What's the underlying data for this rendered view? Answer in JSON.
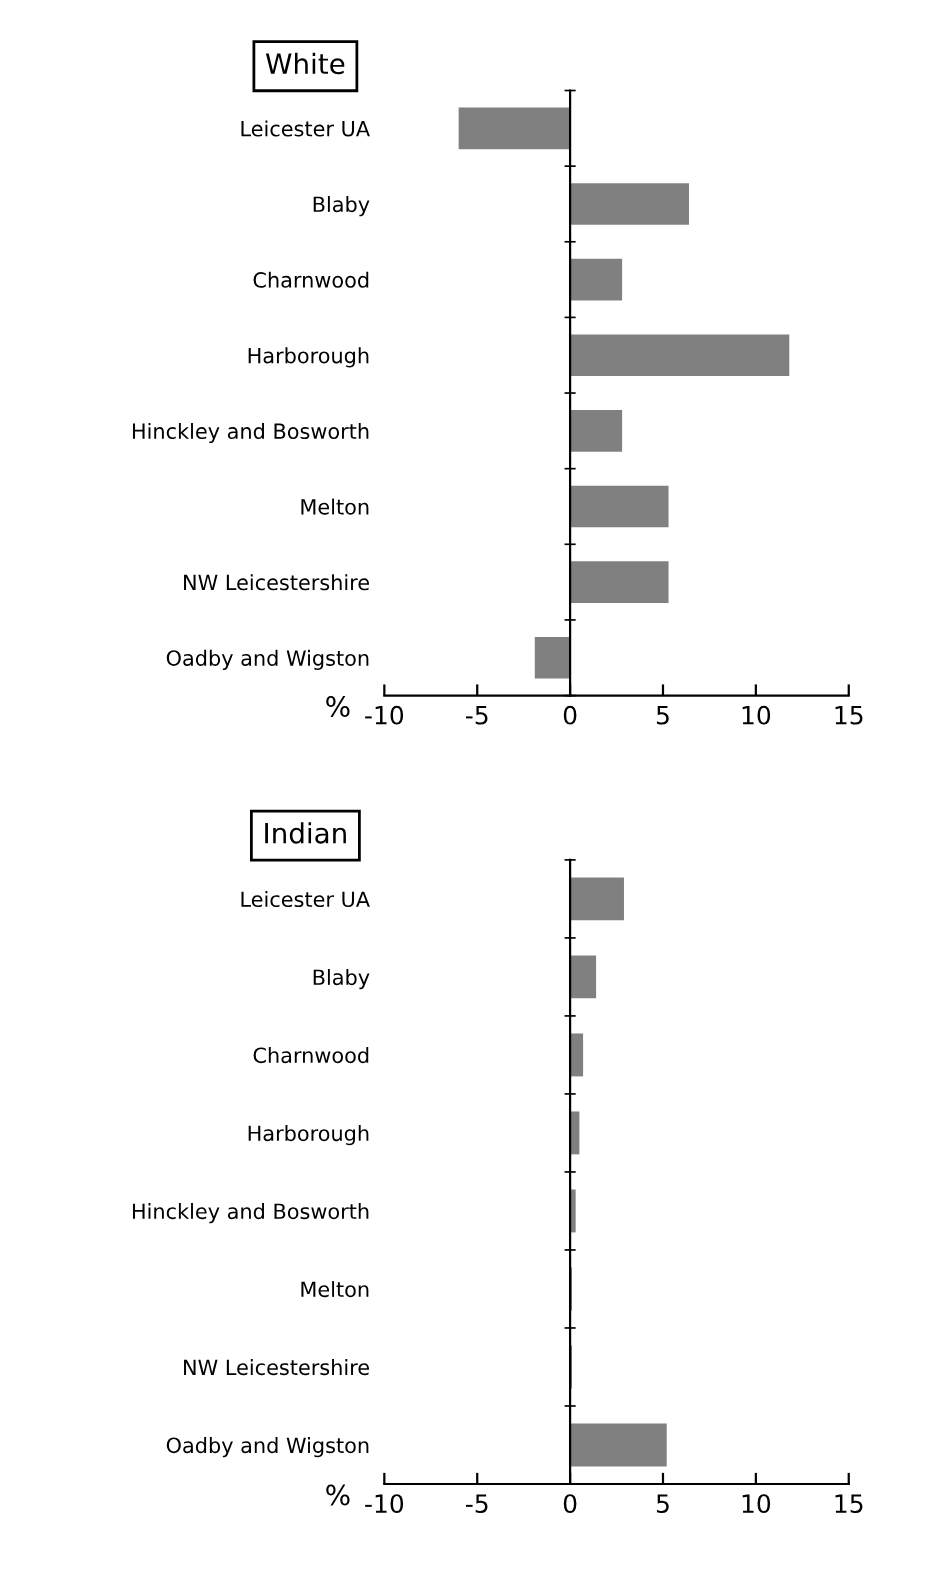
{
  "chart_data": [
    {
      "type": "bar",
      "orientation": "horizontal",
      "title": "White",
      "xlabel": "%",
      "categories": [
        "Leicester UA",
        "Blaby",
        "Charnwood",
        "Harborough",
        "Hinckley and Bosworth",
        "Melton",
        "NW Leicestershire",
        "Oadby and Wigston"
      ],
      "values": [
        -6.0,
        6.4,
        2.8,
        11.8,
        2.8,
        5.3,
        5.3,
        -1.9
      ],
      "color": "#808080",
      "xlim": [
        -10,
        15
      ],
      "xticks": [
        -10,
        -5,
        0,
        5,
        10,
        15
      ]
    },
    {
      "type": "bar",
      "orientation": "horizontal",
      "title": "Indian",
      "xlabel": "%",
      "categories": [
        "Leicester UA",
        "Blaby",
        "Charnwood",
        "Harborough",
        "Hinckley and Bosworth",
        "Melton",
        "NW Leicestershire",
        "Oadby and Wigston"
      ],
      "values": [
        2.9,
        1.4,
        0.7,
        0.5,
        0.3,
        0.1,
        0.1,
        5.2
      ],
      "color": "#808080",
      "xlim": [
        -10,
        15
      ],
      "xticks": [
        -10,
        -5,
        0,
        5,
        10,
        15
      ]
    }
  ]
}
